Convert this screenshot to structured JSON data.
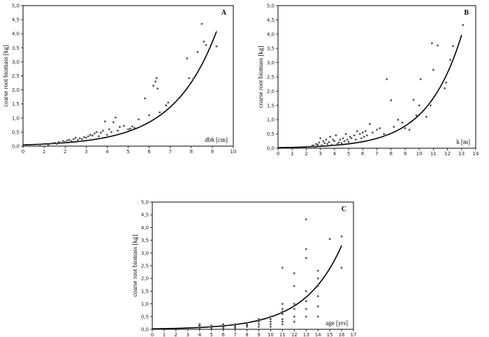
{
  "chart_data": [
    {
      "type": "scatter",
      "panel_label": "A",
      "xlabel": "dbh [cm]",
      "ylabel": "coarse root biomass [kg]",
      "xlim": [
        0,
        10
      ],
      "ylim": [
        0,
        5
      ],
      "xticks": [
        "0",
        "1",
        "2",
        "3",
        "4",
        "5",
        "6",
        "7",
        "8",
        "9",
        "10"
      ],
      "yticks": [
        "0,0",
        "0,5",
        "1,0",
        "1,5",
        "2,0",
        "2,5",
        "3,0",
        "3,5",
        "4,0",
        "4,5",
        "5,0"
      ],
      "fit": {
        "a": 0.045,
        "b": 0.49,
        "x_from": 0,
        "x_to": 9.2
      },
      "points": [
        [
          0.8,
          0.05
        ],
        [
          1.0,
          0.08
        ],
        [
          1.2,
          0.05
        ],
        [
          1.4,
          0.1
        ],
        [
          1.5,
          0.12
        ],
        [
          1.6,
          0.08
        ],
        [
          1.7,
          0.15
        ],
        [
          1.8,
          0.12
        ],
        [
          1.9,
          0.18
        ],
        [
          2.0,
          0.15
        ],
        [
          2.1,
          0.2
        ],
        [
          2.2,
          0.22
        ],
        [
          2.3,
          0.18
        ],
        [
          2.4,
          0.25
        ],
        [
          2.5,
          0.3
        ],
        [
          2.6,
          0.22
        ],
        [
          2.7,
          0.28
        ],
        [
          2.8,
          0.25
        ],
        [
          2.9,
          0.32
        ],
        [
          3.0,
          0.3
        ],
        [
          3.1,
          0.35
        ],
        [
          3.2,
          0.4
        ],
        [
          3.3,
          0.38
        ],
        [
          3.4,
          0.45
        ],
        [
          3.5,
          0.5
        ],
        [
          3.6,
          0.35
        ],
        [
          3.7,
          0.48
        ],
        [
          3.8,
          0.55
        ],
        [
          3.9,
          0.88
        ],
        [
          4.0,
          0.4
        ],
        [
          4.1,
          0.6
        ],
        [
          4.2,
          0.5
        ],
        [
          4.3,
          0.85
        ],
        [
          4.4,
          1.02
        ],
        [
          4.5,
          0.55
        ],
        [
          4.6,
          0.68
        ],
        [
          4.8,
          0.72
        ],
        [
          5.0,
          0.6
        ],
        [
          5.1,
          0.62
        ],
        [
          5.2,
          0.7
        ],
        [
          5.3,
          0.65
        ],
        [
          5.5,
          0.95
        ],
        [
          5.6,
          0.7
        ],
        [
          5.8,
          1.7
        ],
        [
          6.0,
          1.1
        ],
        [
          6.2,
          2.15
        ],
        [
          6.3,
          2.3
        ],
        [
          6.35,
          2.42
        ],
        [
          6.4,
          2.05
        ],
        [
          6.5,
          1.2
        ],
        [
          6.8,
          1.45
        ],
        [
          6.9,
          1.55
        ],
        [
          7.8,
          3.12
        ],
        [
          7.9,
          2.42
        ],
        [
          8.1,
          2.4
        ],
        [
          8.3,
          3.35
        ],
        [
          8.5,
          4.35
        ],
        [
          8.6,
          3.72
        ],
        [
          8.7,
          3.6
        ],
        [
          9.2,
          3.55
        ]
      ]
    },
    {
      "type": "scatter",
      "panel_label": "B",
      "xlabel": "h [m]",
      "ylabel": "coarse root biomass [kg]",
      "xlim": [
        0,
        14
      ],
      "ylim": [
        0,
        5
      ],
      "xticks": [
        "0",
        "1",
        "2",
        "3",
        "4",
        "5",
        "6",
        "7",
        "8",
        "9",
        "10",
        "11",
        "12",
        "13",
        "14"
      ],
      "yticks": [
        "0,0",
        "0,5",
        "1,0",
        "1,5",
        "2,0",
        "2,5",
        "3,0",
        "3,5",
        "4,0",
        "4,5",
        "5,0"
      ],
      "fit": {
        "a": 0.02,
        "b": 0.407,
        "x_from": 0,
        "x_to": 13
      },
      "points": [
        [
          2.2,
          0.05
        ],
        [
          2.4,
          0.08
        ],
        [
          2.5,
          0.1
        ],
        [
          2.6,
          0.05
        ],
        [
          2.7,
          0.15
        ],
        [
          2.8,
          0.12
        ],
        [
          2.9,
          0.2
        ],
        [
          3.0,
          0.35
        ],
        [
          3.1,
          0.1
        ],
        [
          3.2,
          0.25
        ],
        [
          3.3,
          0.18
        ],
        [
          3.4,
          0.3
        ],
        [
          3.5,
          0.15
        ],
        [
          3.6,
          0.22
        ],
        [
          3.7,
          0.4
        ],
        [
          3.8,
          0.12
        ],
        [
          3.9,
          0.3
        ],
        [
          4.0,
          0.25
        ],
        [
          4.1,
          0.45
        ],
        [
          4.2,
          0.15
        ],
        [
          4.3,
          0.2
        ],
        [
          4.4,
          0.3
        ],
        [
          4.5,
          0.18
        ],
        [
          4.6,
          0.35
        ],
        [
          4.7,
          0.25
        ],
        [
          4.8,
          0.5
        ],
        [
          4.9,
          0.3
        ],
        [
          5.0,
          0.22
        ],
        [
          5.1,
          0.4
        ],
        [
          5.2,
          0.35
        ],
        [
          5.4,
          0.45
        ],
        [
          5.5,
          0.3
        ],
        [
          5.6,
          0.6
        ],
        [
          5.8,
          0.5
        ],
        [
          5.9,
          0.35
        ],
        [
          6.0,
          0.55
        ],
        [
          6.1,
          0.4
        ],
        [
          6.2,
          0.6
        ],
        [
          6.3,
          0.45
        ],
        [
          6.5,
          0.85
        ],
        [
          6.7,
          0.55
        ],
        [
          7.0,
          0.65
        ],
        [
          7.2,
          0.7
        ],
        [
          7.5,
          0.5
        ],
        [
          7.6,
          0.45
        ],
        [
          7.7,
          2.42
        ],
        [
          8.0,
          1.68
        ],
        [
          8.2,
          0.75
        ],
        [
          8.5,
          1.0
        ],
        [
          8.8,
          0.9
        ],
        [
          9.0,
          0.7
        ],
        [
          9.3,
          0.65
        ],
        [
          9.6,
          1.7
        ],
        [
          9.8,
          1.15
        ],
        [
          10.0,
          1.5
        ],
        [
          10.1,
          2.42
        ],
        [
          10.5,
          1.1
        ],
        [
          10.8,
          1.5
        ],
        [
          10.9,
          3.68
        ],
        [
          11.0,
          2.75
        ],
        [
          11.3,
          3.6
        ],
        [
          11.8,
          2.1
        ],
        [
          11.9,
          2.3
        ],
        [
          12.2,
          3.1
        ],
        [
          12.4,
          3.58
        ],
        [
          13.1,
          4.32
        ]
      ]
    },
    {
      "type": "scatter",
      "panel_label": "C",
      "xlabel": "age [yrs]",
      "ylabel": "coarse root biomass [kg]",
      "xlim": [
        0,
        17
      ],
      "ylim": [
        0,
        5
      ],
      "xticks": [
        "0",
        "1",
        "2",
        "3",
        "4",
        "5",
        "6",
        "7",
        "8",
        "9",
        "10",
        "11",
        "12",
        "13",
        "14",
        "15",
        "16",
        "17"
      ],
      "yticks": [
        "0,0",
        "0,5",
        "1,0",
        "1,5",
        "2,0",
        "2,5",
        "3,0",
        "3,5",
        "4,0",
        "4,5",
        "5,0"
      ],
      "fit": {
        "a": 0.02,
        "b": 0.319,
        "x_from": 0,
        "x_to": 16
      },
      "points": [
        [
          4,
          0.05
        ],
        [
          4,
          0.1
        ],
        [
          4,
          0.15
        ],
        [
          4,
          0.2
        ],
        [
          5,
          0.05
        ],
        [
          5,
          0.1
        ],
        [
          5,
          0.15
        ],
        [
          6,
          0.05
        ],
        [
          6,
          0.1
        ],
        [
          6,
          0.15
        ],
        [
          6,
          0.2
        ],
        [
          7,
          0.05
        ],
        [
          7,
          0.1
        ],
        [
          7,
          0.15
        ],
        [
          7,
          0.2
        ],
        [
          8,
          0.1
        ],
        [
          8,
          0.15
        ],
        [
          8,
          0.2
        ],
        [
          8,
          0.25
        ],
        [
          9,
          0.1
        ],
        [
          9,
          0.2
        ],
        [
          9,
          0.3
        ],
        [
          9,
          0.35
        ],
        [
          9,
          0.4
        ],
        [
          10,
          0.1
        ],
        [
          10,
          0.2
        ],
        [
          10,
          0.3
        ],
        [
          10,
          0.4
        ],
        [
          10,
          0.5
        ],
        [
          11,
          0.2
        ],
        [
          11,
          0.3
        ],
        [
          11,
          0.4
        ],
        [
          11,
          0.6
        ],
        [
          11,
          0.7
        ],
        [
          11,
          0.8
        ],
        [
          11,
          1.0
        ],
        [
          11,
          2.42
        ],
        [
          12,
          0.3
        ],
        [
          12,
          0.5
        ],
        [
          12,
          0.8
        ],
        [
          12,
          1.0
        ],
        [
          12,
          1.7
        ],
        [
          12,
          2.2
        ],
        [
          13,
          0.5
        ],
        [
          13,
          0.8
        ],
        [
          13,
          1.1
        ],
        [
          13,
          1.5
        ],
        [
          13,
          2.8
        ],
        [
          13,
          3.15
        ],
        [
          13,
          4.32
        ],
        [
          14,
          0.5
        ],
        [
          14,
          0.9
        ],
        [
          14,
          1.3
        ],
        [
          14,
          1.7
        ],
        [
          14,
          2.0
        ],
        [
          14,
          2.3
        ],
        [
          15,
          3.55
        ],
        [
          16,
          2.42
        ],
        [
          16,
          3.65
        ]
      ]
    }
  ]
}
